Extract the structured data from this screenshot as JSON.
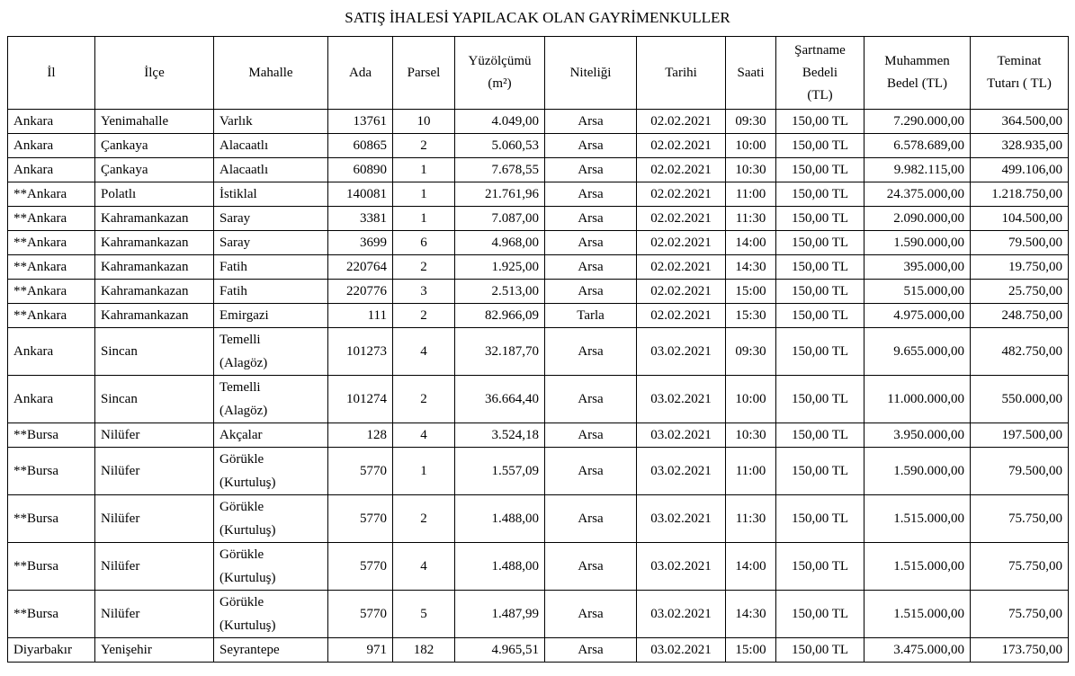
{
  "title": "SATIŞ İHALESİ YAPILACAK OLAN GAYRİMENKULLER",
  "table": {
    "header": [
      "İl",
      "İlçe",
      "Mahalle",
      "Ada",
      "Parsel",
      "Yüzölçümü\n(m²)",
      "Niteliği",
      "Tarihi",
      "Saati",
      "Şartname\nBedeli\n(TL)",
      "Muhammen\nBedel (TL)",
      "Teminat\nTutarı ( TL)"
    ],
    "rows": [
      [
        "Ankara",
        "Yenimahalle",
        "Varlık",
        "13761",
        "10",
        "4.049,00",
        "Arsa",
        "02.02.2021",
        "09:30",
        "150,00 TL",
        "7.290.000,00",
        "364.500,00"
      ],
      [
        "Ankara",
        "Çankaya",
        "Alacaatlı",
        "60865",
        "2",
        "5.060,53",
        "Arsa",
        "02.02.2021",
        "10:00",
        "150,00 TL",
        "6.578.689,00",
        "328.935,00"
      ],
      [
        "Ankara",
        "Çankaya",
        "Alacaatlı",
        "60890",
        "1",
        "7.678,55",
        "Arsa",
        "02.02.2021",
        "10:30",
        "150,00 TL",
        "9.982.115,00",
        "499.106,00"
      ],
      [
        "**Ankara",
        "Polatlı",
        "İstiklal",
        "140081",
        "1",
        "21.761,96",
        "Arsa",
        "02.02.2021",
        "11:00",
        "150,00 TL",
        "24.375.000,00",
        "1.218.750,00"
      ],
      [
        "**Ankara",
        "Kahramankazan",
        "Saray",
        "3381",
        "1",
        "7.087,00",
        "Arsa",
        "02.02.2021",
        "11:30",
        "150,00 TL",
        "2.090.000,00",
        "104.500,00"
      ],
      [
        "**Ankara",
        "Kahramankazan",
        "Saray",
        "3699",
        "6",
        "4.968,00",
        "Arsa",
        "02.02.2021",
        "14:00",
        "150,00 TL",
        "1.590.000,00",
        "79.500,00"
      ],
      [
        "**Ankara",
        "Kahramankazan",
        "Fatih",
        "220764",
        "2",
        "1.925,00",
        "Arsa",
        "02.02.2021",
        "14:30",
        "150,00 TL",
        "395.000,00",
        "19.750,00"
      ],
      [
        "**Ankara",
        "Kahramankazan",
        "Fatih",
        "220776",
        "3",
        "2.513,00",
        "Arsa",
        "02.02.2021",
        "15:00",
        "150,00 TL",
        "515.000,00",
        "25.750,00"
      ],
      [
        "**Ankara",
        "Kahramankazan",
        "Emirgazi",
        "111",
        "2",
        "82.966,09",
        "Tarla",
        "02.02.2021",
        "15:30",
        "150,00 TL",
        "4.975.000,00",
        "248.750,00"
      ],
      [
        "Ankara",
        "Sincan",
        "Temelli\n(Alagöz)",
        "101273",
        "4",
        "32.187,70",
        "Arsa",
        "03.02.2021",
        "09:30",
        "150,00 TL",
        "9.655.000,00",
        "482.750,00"
      ],
      [
        "Ankara",
        "Sincan",
        "Temelli\n(Alagöz)",
        "101274",
        "2",
        "36.664,40",
        "Arsa",
        "03.02.2021",
        "10:00",
        "150,00 TL",
        "11.000.000,00",
        "550.000,00"
      ],
      [
        "**Bursa",
        "Nilüfer",
        "Akçalar",
        "128",
        "4",
        "3.524,18",
        "Arsa",
        "03.02.2021",
        "10:30",
        "150,00 TL",
        "3.950.000,00",
        "197.500,00"
      ],
      [
        "**Bursa",
        "Nilüfer",
        "Görükle\n(Kurtuluş)",
        "5770",
        "1",
        "1.557,09",
        "Arsa",
        "03.02.2021",
        "11:00",
        "150,00 TL",
        "1.590.000,00",
        "79.500,00"
      ],
      [
        "**Bursa",
        "Nilüfer",
        "Görükle\n(Kurtuluş)",
        "5770",
        "2",
        "1.488,00",
        "Arsa",
        "03.02.2021",
        "11:30",
        "150,00 TL",
        "1.515.000,00",
        "75.750,00"
      ],
      [
        "**Bursa",
        "Nilüfer",
        "Görükle\n(Kurtuluş)",
        "5770",
        "4",
        "1.488,00",
        "Arsa",
        "03.02.2021",
        "14:00",
        "150,00 TL",
        "1.515.000,00",
        "75.750,00"
      ],
      [
        "**Bursa",
        "Nilüfer",
        "Görükle\n(Kurtuluş)",
        "5770",
        "5",
        "1.487,99",
        "Arsa",
        "03.02.2021",
        "14:30",
        "150,00 TL",
        "1.515.000,00",
        "75.750,00"
      ],
      [
        "Diyarbakır",
        "Yenişehir",
        "Seyrantepe",
        "971",
        "182",
        "4.965,51",
        "Arsa",
        "03.02.2021",
        "15:00",
        "150,00 TL",
        "3.475.000,00",
        "173.750,00"
      ]
    ]
  }
}
